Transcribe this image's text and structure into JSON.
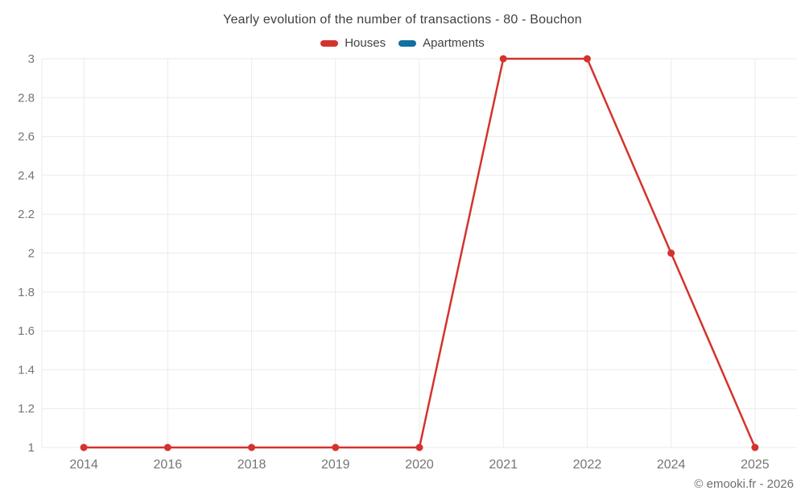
{
  "title": "Yearly evolution of the number of transactions - 80 - Bouchon",
  "legend": [
    {
      "label": "Houses",
      "color": "#d4332c"
    },
    {
      "label": "Apartments",
      "color": "#1070a0"
    }
  ],
  "watermark": "© emooki.fr - 2026",
  "colors": {
    "houses": "#d4332c",
    "apartments": "#1070a0",
    "grid": "#ebebeb",
    "tick_label": "#757575",
    "title_text": "#3f3f3f"
  },
  "chart_data": {
    "type": "line",
    "title": "Yearly evolution of the number of transactions - 80 - Bouchon",
    "categories": [
      "2014",
      "2016",
      "2018",
      "2019",
      "2020",
      "2021",
      "2022",
      "2024",
      "2025"
    ],
    "series": [
      {
        "name": "Houses",
        "color": "#d4332c",
        "values": [
          1,
          1,
          1,
          1,
          1,
          3,
          3,
          2,
          1
        ]
      },
      {
        "name": "Apartments",
        "color": "#1070a0",
        "values": []
      }
    ],
    "xlabel": "",
    "ylabel": "",
    "ylim": [
      1,
      3
    ],
    "yticks": [
      1,
      1.2,
      1.4,
      1.6,
      1.8,
      2,
      2.2,
      2.4,
      2.6,
      2.8,
      3
    ],
    "grid": true,
    "legend_position": "top"
  }
}
